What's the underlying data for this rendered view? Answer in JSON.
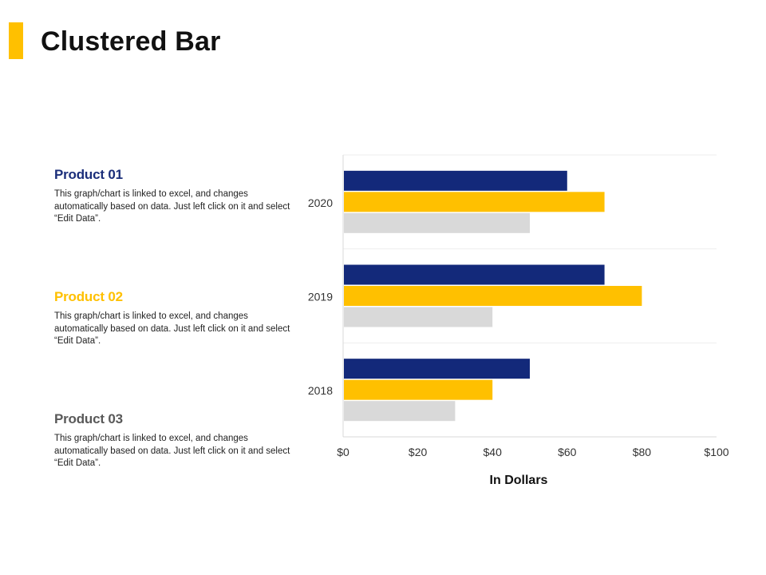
{
  "header": {
    "title": "Clustered Bar",
    "accent_color": "#ffc000"
  },
  "legend_blocks": [
    {
      "name": "Product 01",
      "color": "#1b2e7a",
      "description": "This graph/chart is linked to excel, and changes automatically based on data. Just left click on it and select “Edit Data”."
    },
    {
      "name": "Product 02",
      "color": "#ffc000",
      "description": "This graph/chart is linked to excel, and changes automatically based on data. Just left click on it and select “Edit Data”."
    },
    {
      "name": "Product 03",
      "color": "#595959",
      "description": "This graph/chart is linked to excel, and changes automatically based on data. Just left click on it and select “Edit Data”."
    }
  ],
  "chart_data": {
    "type": "bar",
    "orientation": "horizontal",
    "title": "",
    "xlabel": "In Dollars",
    "ylabel": "",
    "xlim": [
      0,
      100
    ],
    "x_ticks": [
      0,
      20,
      40,
      60,
      80,
      100
    ],
    "x_tick_labels": [
      "$0",
      "$20",
      "$40",
      "$60",
      "$80",
      "$100"
    ],
    "categories": [
      "2020",
      "2019",
      "2018"
    ],
    "series": [
      {
        "name": "Product 01",
        "color": "#13297a",
        "values": [
          60,
          70,
          50
        ]
      },
      {
        "name": "Product 02",
        "color": "#ffc000",
        "values": [
          70,
          80,
          40
        ]
      },
      {
        "name": "Product 03",
        "color": "#d9d9d9",
        "values": [
          50,
          40,
          30
        ]
      }
    ],
    "grid": true,
    "legend": "left"
  }
}
